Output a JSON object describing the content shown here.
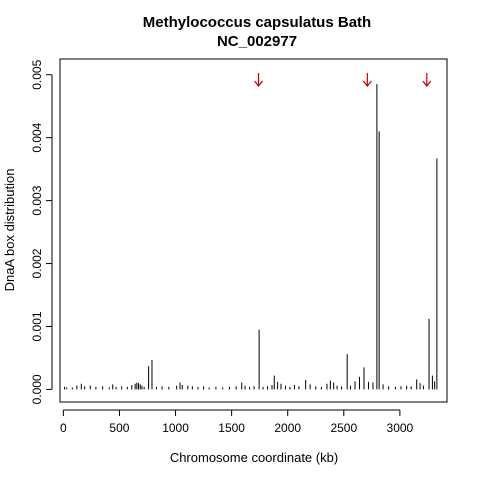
{
  "chart_data": {
    "type": "bar",
    "title": "Methylococcus capsulatus Bath",
    "subtitle": "NC_002977",
    "xlabel": "Chromosome coordinate (kb)",
    "ylabel": "DnaA box distribution",
    "xlim": [
      -30,
      3420
    ],
    "ylim": [
      -0.0002,
      0.00525
    ],
    "xticks": [
      0,
      500,
      1000,
      1500,
      2000,
      2500,
      3000
    ],
    "yticks": [
      0.0,
      0.001,
      0.002,
      0.003,
      0.004,
      0.005
    ],
    "ytick_labels": [
      "0.000",
      "0.001",
      "0.002",
      "0.003",
      "0.004",
      "0.005"
    ],
    "arrows_x": [
      1740,
      2710,
      3240
    ],
    "arrow_color": "#cc0000",
    "series": [
      {
        "x": [
          10,
          30,
          80,
          120,
          160,
          190,
          240,
          290,
          350,
          410,
          440,
          470,
          520,
          570,
          610,
          640,
          655,
          670,
          685,
          700,
          720,
          760,
          790,
          830,
          880,
          940,
          1010,
          1040,
          1060,
          1110,
          1150,
          1200,
          1250,
          1300,
          1360,
          1420,
          1480,
          1540,
          1590,
          1620,
          1660,
          1700,
          1745,
          1780,
          1820,
          1860,
          1880,
          1910,
          1940,
          1980,
          2020,
          2060,
          2100,
          2160,
          2200,
          2250,
          2300,
          2350,
          2380,
          2410,
          2440,
          2480,
          2530,
          2560,
          2600,
          2640,
          2680,
          2720,
          2760,
          2795,
          2815,
          2850,
          2900,
          2960,
          3010,
          3060,
          3100,
          3150,
          3180,
          3210,
          3260,
          3290,
          3310,
          3330
        ],
        "values": [
          4e-05,
          3e-05,
          3e-05,
          6e-05,
          9e-05,
          5e-05,
          6e-05,
          4e-05,
          5e-05,
          3e-05,
          8e-05,
          4e-05,
          5e-05,
          4e-05,
          7e-05,
          9e-05,
          0.00011,
          0.0001,
          8e-05,
          6e-05,
          4e-05,
          0.00037,
          0.00047,
          4e-05,
          5e-05,
          4e-05,
          6e-05,
          0.00011,
          7e-05,
          6e-05,
          5e-05,
          4e-05,
          5e-05,
          3e-05,
          4e-05,
          3e-05,
          4e-05,
          5e-05,
          0.00011,
          6e-05,
          4e-05,
          5e-05,
          0.00095,
          4e-05,
          5e-05,
          7e-05,
          0.00022,
          0.00012,
          9e-05,
          6e-05,
          4e-05,
          7e-05,
          5e-05,
          0.00015,
          8e-05,
          5e-05,
          4e-05,
          9e-05,
          0.00014,
          0.00011,
          6e-05,
          5e-05,
          0.00056,
          6e-05,
          0.00013,
          0.0002,
          0.00035,
          0.00012,
          0.00011,
          0.00485,
          0.0041,
          8e-05,
          5e-05,
          4e-05,
          5e-05,
          6e-05,
          5e-05,
          0.00016,
          0.0001,
          6e-05,
          0.00112,
          0.00022,
          0.00013,
          0.00367
        ]
      }
    ]
  }
}
